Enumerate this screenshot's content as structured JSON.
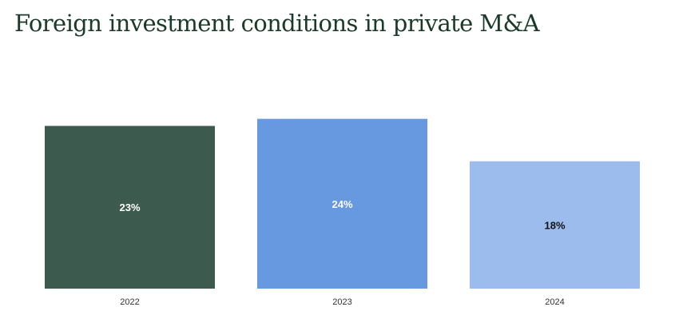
{
  "title": "Foreign investment conditions in private M&A",
  "chart_data": {
    "type": "bar",
    "categories": [
      "2022",
      "2023",
      "2024"
    ],
    "values": [
      23,
      24,
      18
    ],
    "value_labels": [
      "23%",
      "24%",
      "18%"
    ],
    "ylim": [
      0,
      33
    ],
    "grid": false,
    "bar_colors": [
      "#3d5a4e",
      "#6699e0",
      "#9bbcec"
    ],
    "label_colors": [
      "#ffffff",
      "#ffffff",
      "#111111"
    ]
  }
}
